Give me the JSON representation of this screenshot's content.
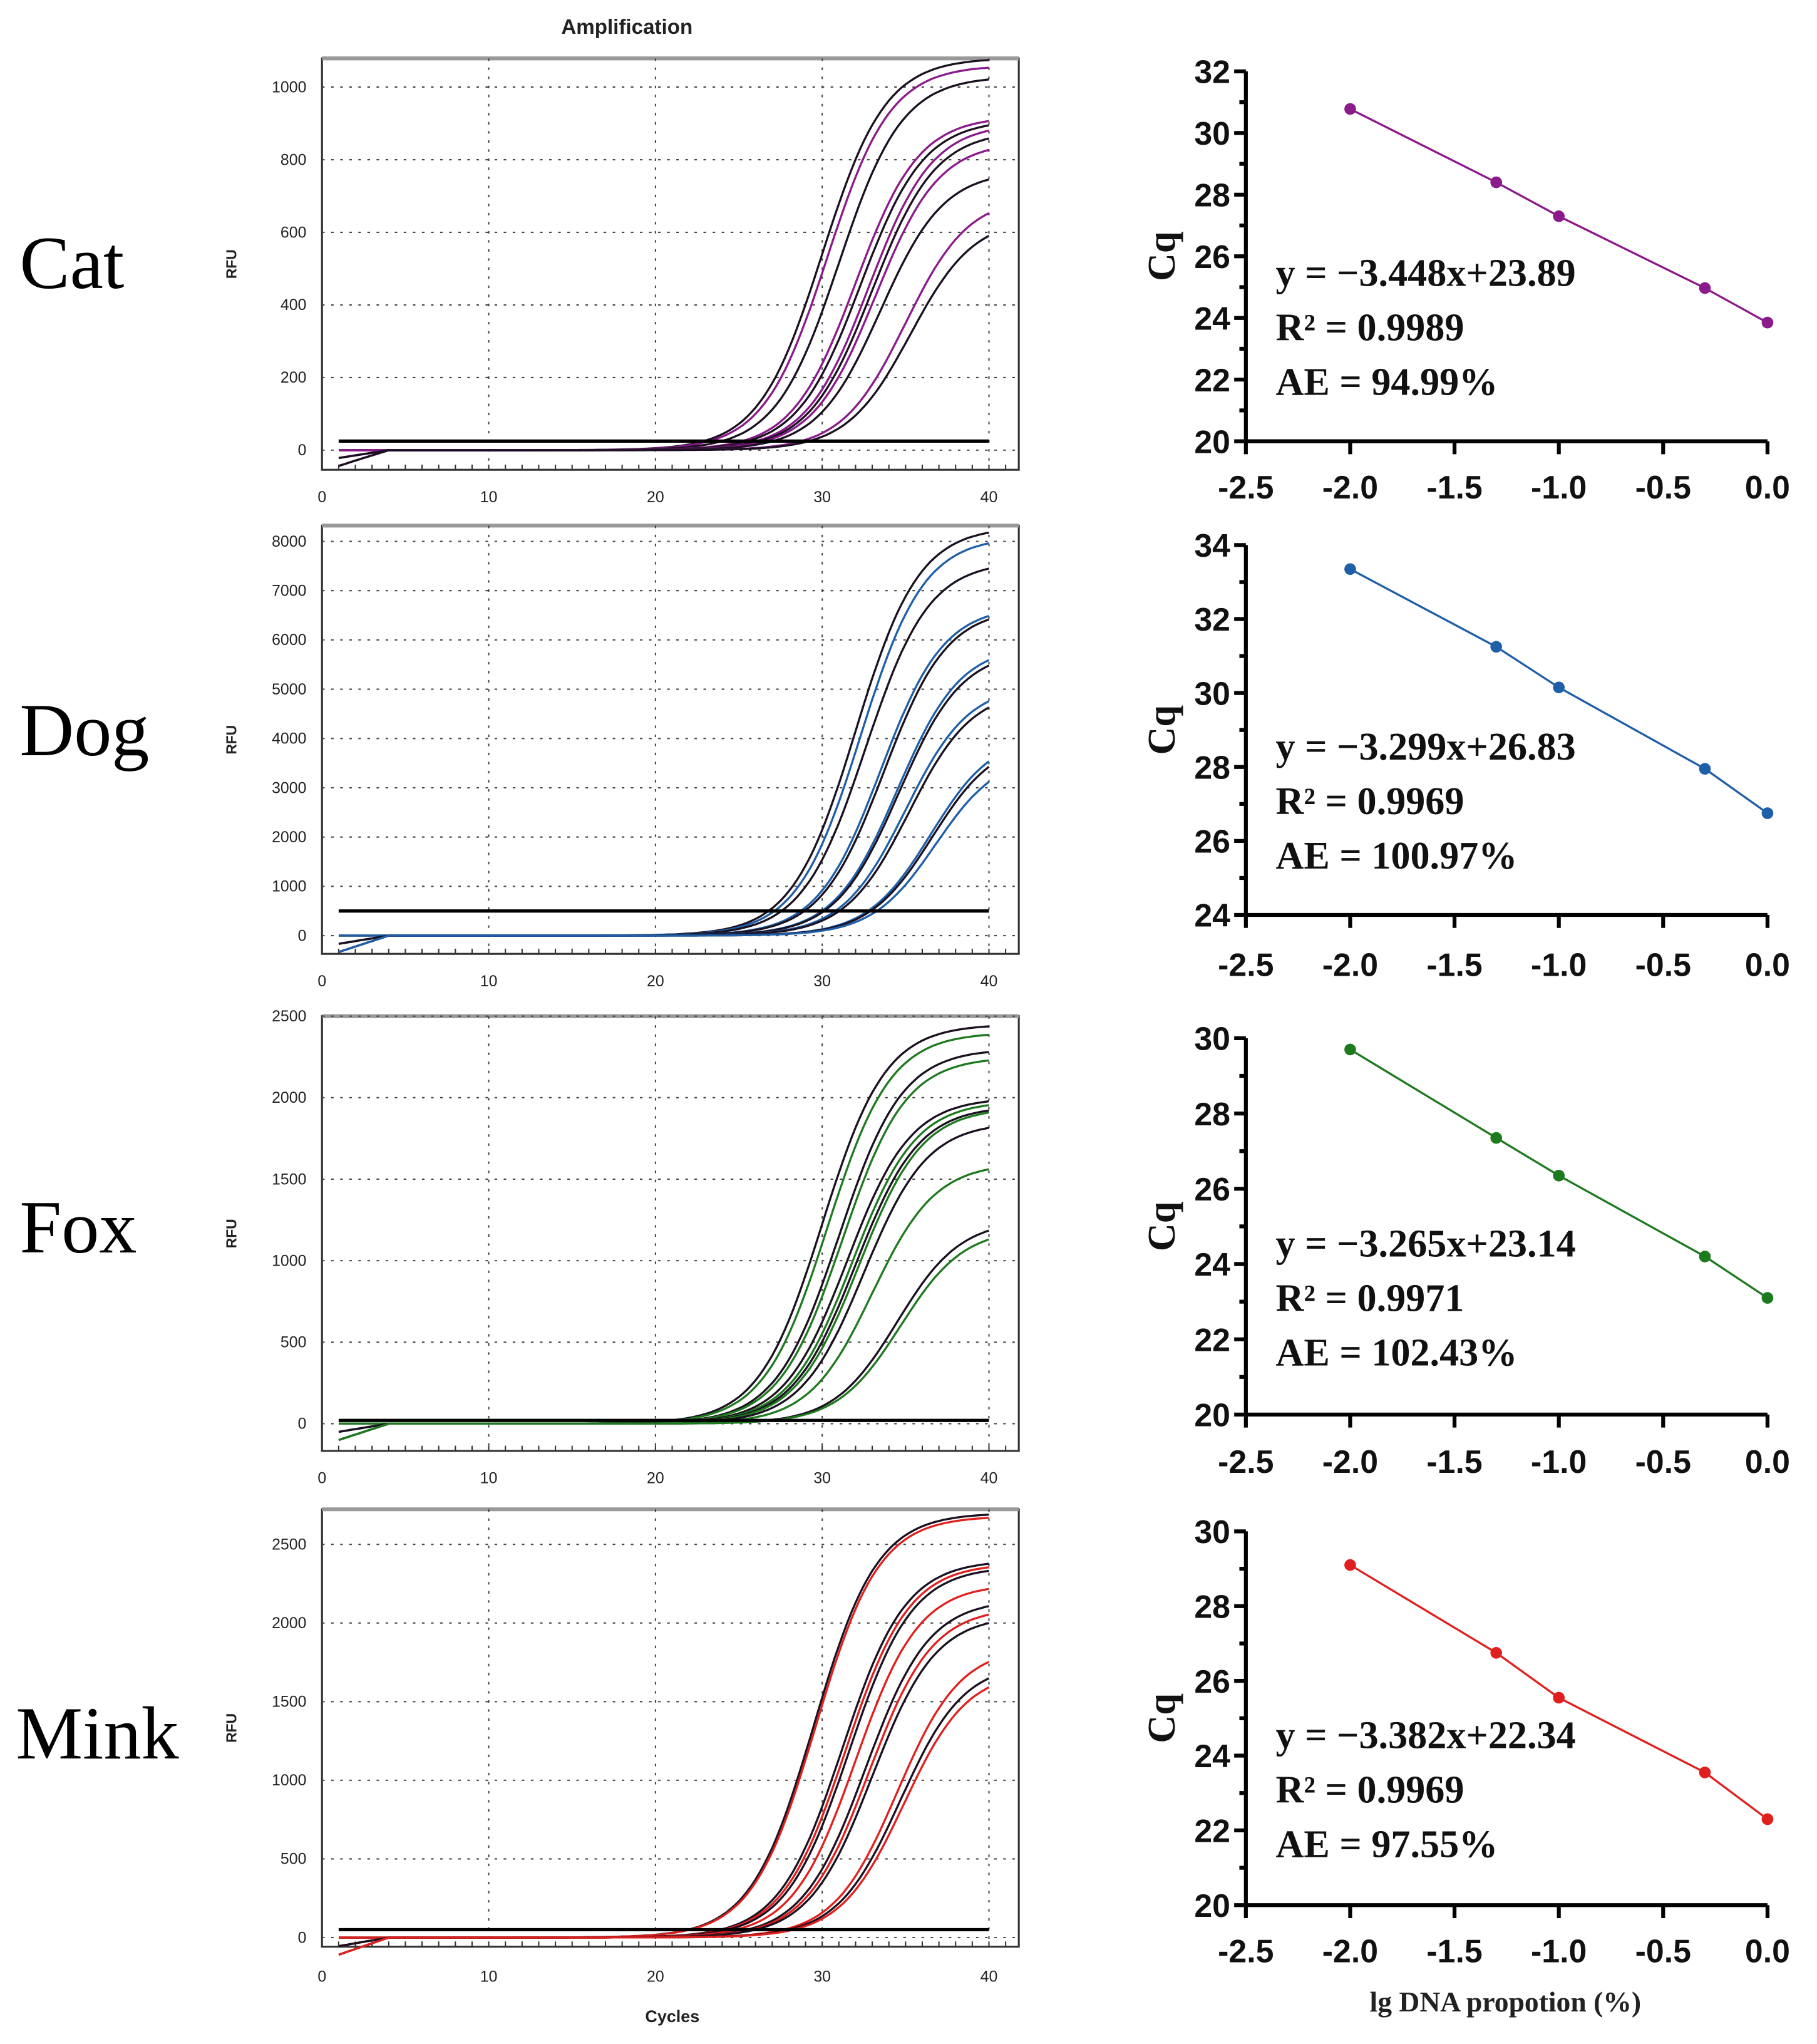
{
  "title": "Amplification",
  "amplification_xlabel": "Cycles",
  "amplification_ylabel": "RFU",
  "standard_curve_xlabel": "lg DNA propotion (%)",
  "standard_curve_ylabel": "Cq",
  "chart_data": [
    {
      "species": "Cat",
      "color": "#8b1a8b",
      "type": "line",
      "amplification": {
        "xlim": [
          0,
          40
        ],
        "ylim": [
          -54,
          1079
        ],
        "xticks": [
          "0",
          "10",
          "20",
          "30",
          "40"
        ],
        "yticks": [
          0,
          200,
          400,
          600,
          800,
          1000
        ],
        "ytick_labels": [
          "0",
          "200",
          "400",
          "600",
          "800",
          "1000"
        ],
        "threshold": 25,
        "curves": [
          [
            30,
            1080
          ],
          [
            30.3,
            1060
          ],
          [
            31,
            1030
          ],
          [
            32,
            920
          ],
          [
            32.3,
            910
          ],
          [
            32.8,
            900
          ],
          [
            33,
            880
          ],
          [
            33.2,
            850
          ],
          [
            33.5,
            770
          ],
          [
            35,
            700
          ],
          [
            35.3,
            640
          ]
        ]
      },
      "standard_curve": {
        "x": [
          -2.0,
          -1.3,
          -1.0,
          -0.3,
          0.0
        ],
        "y": [
          30.78,
          28.4,
          27.3,
          24.97,
          23.85
        ],
        "ylim": [
          20,
          32
        ],
        "yticks": [
          "20",
          "22",
          "24",
          "26",
          "28",
          "30",
          "32"
        ],
        "xticks": [
          "-2.5",
          "-2.0",
          "-1.5",
          "-1.0",
          "-0.5",
          "0.0"
        ],
        "equation": "y = −3.448x+23.89",
        "r2_label": "R² = 0.9989",
        "ae_label": "AE = 94.99%"
      }
    },
    {
      "species": "Dog",
      "color": "#1f5fa8",
      "type": "line",
      "amplification": {
        "xlim": [
          0,
          40
        ],
        "ylim": [
          -370,
          8320
        ],
        "xticks": [
          "0",
          "10",
          "20",
          "30",
          "40"
        ],
        "yticks": [
          0,
          1000,
          2000,
          3000,
          4000,
          5000,
          6000,
          7000,
          8000
        ],
        "ytick_labels": [
          "0",
          "1000",
          "2000",
          "3000",
          "4000",
          "5000",
          "6000",
          "7000",
          "8000"
        ],
        "threshold": 500,
        "curves": [
          [
            32,
            8300
          ],
          [
            32.3,
            8100
          ],
          [
            32.6,
            7600
          ],
          [
            33.5,
            6700
          ],
          [
            33.7,
            6650
          ],
          [
            34.5,
            5900
          ],
          [
            34.6,
            5800
          ],
          [
            35,
            5100
          ],
          [
            35.2,
            5000
          ],
          [
            36.5,
            4100
          ],
          [
            36.6,
            4000
          ],
          [
            36.8,
            3700
          ]
        ]
      },
      "standard_curve": {
        "x": [
          -2.0,
          -1.3,
          -1.0,
          -0.3,
          0.0
        ],
        "y": [
          33.35,
          31.25,
          30.15,
          27.95,
          26.75
        ],
        "ylim": [
          24,
          34
        ],
        "yticks": [
          "24",
          "26",
          "28",
          "30",
          "32",
          "34"
        ],
        "xticks": [
          "-2.5",
          "-2.0",
          "-1.5",
          "-1.0",
          "-0.5",
          "0.0"
        ],
        "equation": "y = −3.299x+26.83",
        "r2_label": "R² = 0.9969",
        "ae_label": "AE = 100.97%"
      }
    },
    {
      "species": "Fox",
      "color": "#1e7a1e",
      "type": "line",
      "amplification": {
        "xlim": [
          0,
          40
        ],
        "ylim": [
          -167,
          2500
        ],
        "xticks": [
          "0",
          "10",
          "20",
          "30",
          "40"
        ],
        "yticks": [
          0,
          500,
          1000,
          1500,
          2000,
          2500
        ],
        "ytick_labels": [
          "0",
          "500",
          "1000",
          "1500",
          "2000",
          "2500"
        ],
        "threshold": 20,
        "curves": [
          [
            30,
            2450
          ],
          [
            30.3,
            2400
          ],
          [
            31,
            2300
          ],
          [
            31.2,
            2250
          ],
          [
            31.5,
            2000
          ],
          [
            31.8,
            1980
          ],
          [
            32,
            1950
          ],
          [
            32.2,
            1940
          ],
          [
            32.5,
            1850
          ],
          [
            33,
            1600
          ],
          [
            34.5,
            1250
          ],
          [
            34.7,
            1200
          ]
        ]
      },
      "standard_curve": {
        "x": [
          -2.0,
          -1.3,
          -1.0,
          -0.3,
          0.0
        ],
        "y": [
          29.7,
          27.35,
          26.35,
          24.2,
          23.1
        ],
        "ylim": [
          20,
          30
        ],
        "yticks": [
          "20",
          "22",
          "24",
          "26",
          "28",
          "30"
        ],
        "xticks": [
          "-2.5",
          "-2.0",
          "-1.5",
          "-1.0",
          "-0.5",
          "0.0"
        ],
        "equation": "y = −3.265x+23.14",
        "r2_label": "R² = 0.9971",
        "ae_label": "AE = 102.43%"
      }
    },
    {
      "species": "Mink",
      "color": "#e0201e",
      "type": "line",
      "amplification": {
        "xlim": [
          0,
          40
        ],
        "ylim": [
          -58,
          2723
        ],
        "xticks": [
          "0",
          "10",
          "20",
          "30",
          "40"
        ],
        "yticks": [
          0,
          500,
          1000,
          1500,
          2000,
          2500
        ],
        "ytick_labels": [
          "0",
          "500",
          "1000",
          "1500",
          "2000",
          "2500"
        ],
        "threshold": 50,
        "curves": [
          [
            29.5,
            2700
          ],
          [
            29.6,
            2680
          ],
          [
            31.2,
            2400
          ],
          [
            31.4,
            2380
          ],
          [
            31.6,
            2360
          ],
          [
            32,
            2250
          ],
          [
            32.6,
            2150
          ],
          [
            32.8,
            2100
          ],
          [
            33,
            2050
          ],
          [
            34.5,
            1850
          ],
          [
            34.7,
            1750
          ],
          [
            34.9,
            1700
          ]
        ]
      },
      "standard_curve": {
        "x": [
          -2.0,
          -1.3,
          -1.0,
          -0.3,
          0.0
        ],
        "y": [
          29.1,
          26.75,
          25.55,
          23.55,
          22.3
        ],
        "ylim": [
          20,
          30
        ],
        "yticks": [
          "20",
          "22",
          "24",
          "26",
          "28",
          "30"
        ],
        "xticks": [
          "-2.5",
          "-2.0",
          "-1.5",
          "-1.0",
          "-0.5",
          "0.0"
        ],
        "equation": "y = −3.382x+22.34",
        "r2_label": "R² = 0.9969",
        "ae_label": "AE = 97.55%"
      }
    }
  ]
}
